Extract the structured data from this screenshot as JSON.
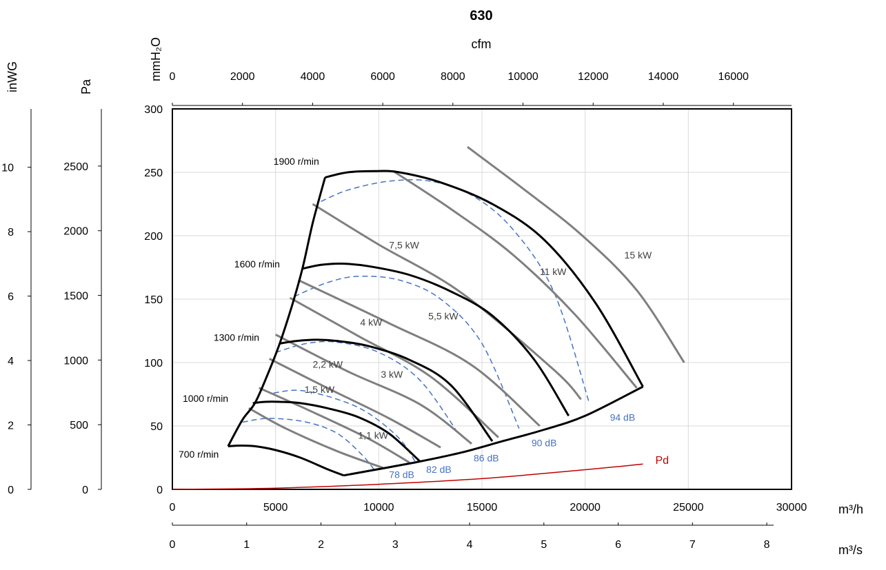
{
  "chart_data": {
    "type": "line",
    "title": "630",
    "xlabel": "m³/h",
    "x2label": "m³/s",
    "x3label": "cfm",
    "ylabel": "mmH₂O",
    "y2label": "Pa",
    "y3label": "inWG",
    "xlim": [
      0,
      30000
    ],
    "ylim": [
      0,
      300
    ],
    "grid": true,
    "x_ticks": [
      0,
      5000,
      10000,
      15000,
      20000,
      25000,
      30000
    ],
    "y_ticks": [
      0,
      50,
      100,
      150,
      200,
      250,
      300
    ],
    "ms_ticks": [
      0,
      1,
      2,
      3,
      4,
      5,
      6,
      7,
      8
    ],
    "cfm_ticks": [
      0,
      2000,
      4000,
      6000,
      8000,
      10000,
      12000,
      14000,
      16000
    ],
    "pa_ticks": [
      0,
      500,
      1000,
      1500,
      2000,
      2500
    ],
    "inwg_ticks": [
      0,
      2,
      4,
      6,
      8,
      10
    ],
    "colors": {
      "speed": "#000000",
      "power": "#7f7f7f",
      "sound": "#4472c4",
      "pd": "#c00000",
      "grid": "#d9d9d9"
    },
    "speed_curves": [
      {
        "name": "1900 r/min",
        "x": [
          7400,
          8500,
          9800,
          11000,
          13000,
          15500,
          18000,
          20500,
          22800
        ],
        "y": [
          246,
          250,
          251,
          250,
          242,
          225,
          197,
          147,
          81
        ]
      },
      {
        "name": "1600 r/min",
        "x": [
          6300,
          7200,
          8200,
          9500,
          11500,
          13500,
          15500,
          17500,
          19200
        ],
        "y": [
          174,
          177,
          178,
          176,
          169,
          156,
          137,
          103,
          58
        ]
      },
      {
        "name": "1300 r/min",
        "x": [
          5200,
          6000,
          7000,
          8000,
          9500,
          11500,
          13500,
          15500
        ],
        "y": [
          115,
          117,
          118,
          117,
          113,
          102,
          82,
          38
        ]
      },
      {
        "name": "1000 r/min",
        "x": [
          3900,
          4500,
          5200,
          6200,
          7500,
          9000,
          10500,
          12000
        ],
        "y": [
          68,
          69,
          69,
          68,
          64,
          57,
          44,
          22
        ]
      },
      {
        "name": "700 r/min",
        "x": [
          2700,
          3300,
          4000,
          5000,
          6200,
          7500,
          8300
        ],
        "y": [
          34,
          34.5,
          34,
          31,
          25,
          16,
          11
        ]
      }
    ],
    "envelope": {
      "left": {
        "x": [
          2700,
          3400,
          4000,
          4600,
          5200,
          5800,
          6300,
          6800,
          7400
        ],
        "y": [
          34,
          55,
          68,
          90,
          115,
          145,
          174,
          210,
          246
        ]
      },
      "right": {
        "x": [
          8300,
          10000,
          12000,
          14000,
          16000,
          18000,
          20000,
          22800
        ],
        "y": [
          11,
          16,
          22,
          29,
          38,
          47,
          58,
          81
        ]
      }
    },
    "power_lines": [
      {
        "name": "1,1 kW",
        "label": [
          9000,
          40
        ],
        "x": [
          3700,
          5500,
          8000,
          10200
        ],
        "y": [
          64,
          48,
          30,
          17
        ]
      },
      {
        "name": "1,5 kW",
        "label": [
          6400,
          76
        ],
        "x": [
          4200,
          6800,
          9500,
          11500
        ],
        "y": [
          80,
          61,
          40,
          21
        ]
      },
      {
        "name": "2,2 kW",
        "label": [
          6800,
          96
        ],
        "x": [
          4700,
          7500,
          10500,
          13000
        ],
        "y": [
          103,
          80,
          56,
          33
        ]
      },
      {
        "name": "3 kW",
        "label": [
          10100,
          88
        ],
        "x": [
          5000,
          8500,
          12000,
          14500
        ],
        "y": [
          122,
          93,
          67,
          36
        ]
      },
      {
        "name": "4 kW",
        "label": [
          9100,
          129
        ],
        "x": [
          5700,
          9000,
          12500,
          15800
        ],
        "y": [
          151,
          121,
          89,
          41
        ]
      },
      {
        "name": "5,5 kW",
        "label": [
          12400,
          134
        ],
        "x": [
          6100,
          10500,
          14500,
          17800
        ],
        "y": [
          165,
          131,
          98,
          50
        ]
      },
      {
        "name": "7,5 kW",
        "label": [
          10500,
          190
        ],
        "x": [
          6800,
          10000,
          14000,
          18500,
          19800
        ],
        "y": [
          225,
          193,
          155,
          94,
          71
        ]
      },
      {
        "name": "11 kW",
        "label": [
          17800,
          169
        ],
        "x": [
          10700,
          13500,
          16500,
          19500,
          22500
        ],
        "y": [
          251,
          221,
          185,
          138,
          80
        ]
      },
      {
        "name": "15 kW",
        "label": [
          21900,
          182
        ],
        "x": [
          14300,
          17000,
          19800,
          22500,
          24800
        ],
        "y": [
          270,
          237,
          201,
          157,
          100
        ]
      }
    ],
    "sound_lines": [
      {
        "name": "78 dB",
        "label": [
          10500,
          9
        ],
        "x": [
          3400,
          4700,
          6500,
          8000,
          9200,
          9800
        ],
        "y": [
          53,
          56,
          53,
          44,
          27,
          15
        ]
      },
      {
        "name": "82 dB",
        "label": [
          12300,
          13
        ],
        "x": [
          4900,
          6200,
          8000,
          9500,
          11000,
          11800
        ],
        "y": [
          76,
          78,
          71,
          60,
          40,
          21
        ]
      },
      {
        "name": "86 dB",
        "label": [
          14600,
          22
        ],
        "x": [
          5000,
          6500,
          8000,
          10000,
          12000,
          13900
        ],
        "y": [
          108,
          115,
          116,
          108,
          86,
          43
        ]
      },
      {
        "name": "90 dB",
        "label": [
          17400,
          34
        ],
        "x": [
          5900,
          7500,
          9000,
          11000,
          13000,
          15000,
          16800
        ],
        "y": [
          152,
          163,
          168,
          165,
          150,
          115,
          48
        ]
      },
      {
        "name": "94 dB",
        "label": [
          21200,
          54
        ],
        "x": [
          7200,
          8500,
          10500,
          12500,
          14500,
          16500,
          18500,
          20200
        ],
        "y": [
          227,
          236,
          243,
          243,
          232,
          205,
          155,
          68
        ]
      }
    ],
    "pd_line": {
      "name": "Pd",
      "label": [
        23400,
        20
      ],
      "x": [
        0,
        5000,
        10000,
        15000,
        20000,
        22800
      ],
      "y": [
        0,
        1,
        4,
        8.5,
        15.5,
        20
      ]
    },
    "speed_labels": [
      {
        "name": "1900 r/min",
        "pos": [
          4900,
          256
        ]
      },
      {
        "name": "1600 r/min",
        "pos": [
          3000,
          175
        ]
      },
      {
        "name": "1300 r/min",
        "pos": [
          2000,
          117
        ]
      },
      {
        "name": "1000 r/min",
        "pos": [
          500,
          69
        ]
      },
      {
        "name": "700 r/min",
        "pos": [
          300,
          25
        ]
      }
    ]
  }
}
